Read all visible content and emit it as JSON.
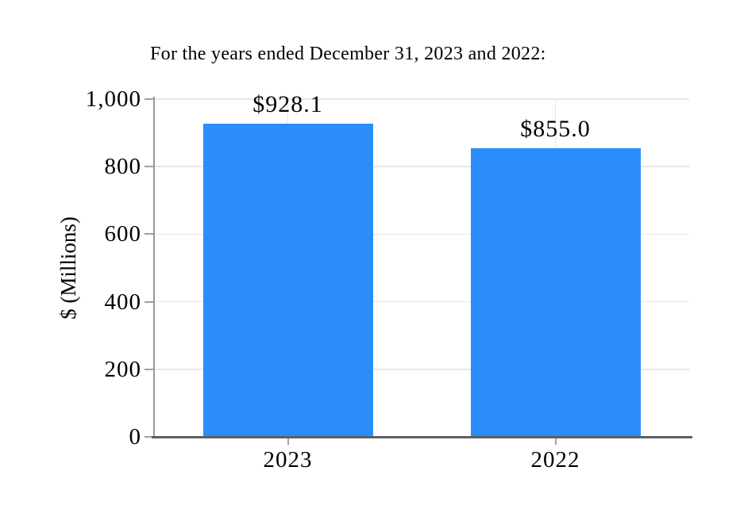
{
  "chart_data": {
    "type": "bar",
    "title": "For the years ended December 31, 2023 and 2022:",
    "ylabel": "$ (Millions)",
    "xlabel": "",
    "categories": [
      "2023",
      "2022"
    ],
    "values": [
      928.1,
      855.0
    ],
    "bar_labels": [
      "$928.1",
      "$855.0"
    ],
    "ylim": [
      0,
      1000
    ],
    "yticks": [
      0,
      200,
      400,
      600,
      800,
      1000
    ],
    "ytick_labels": [
      "0",
      "200",
      "400",
      "600",
      "800",
      "1,000"
    ],
    "grid": true,
    "legend_position": "none",
    "colors": {
      "bar": "#2b8dfa",
      "gridline": "#e6e6e6",
      "x_axis_line": "#5f5f5f",
      "y_axis_line": "#9a9a9a",
      "tick_mark": "#a0a0a0",
      "text": "#000000"
    }
  }
}
